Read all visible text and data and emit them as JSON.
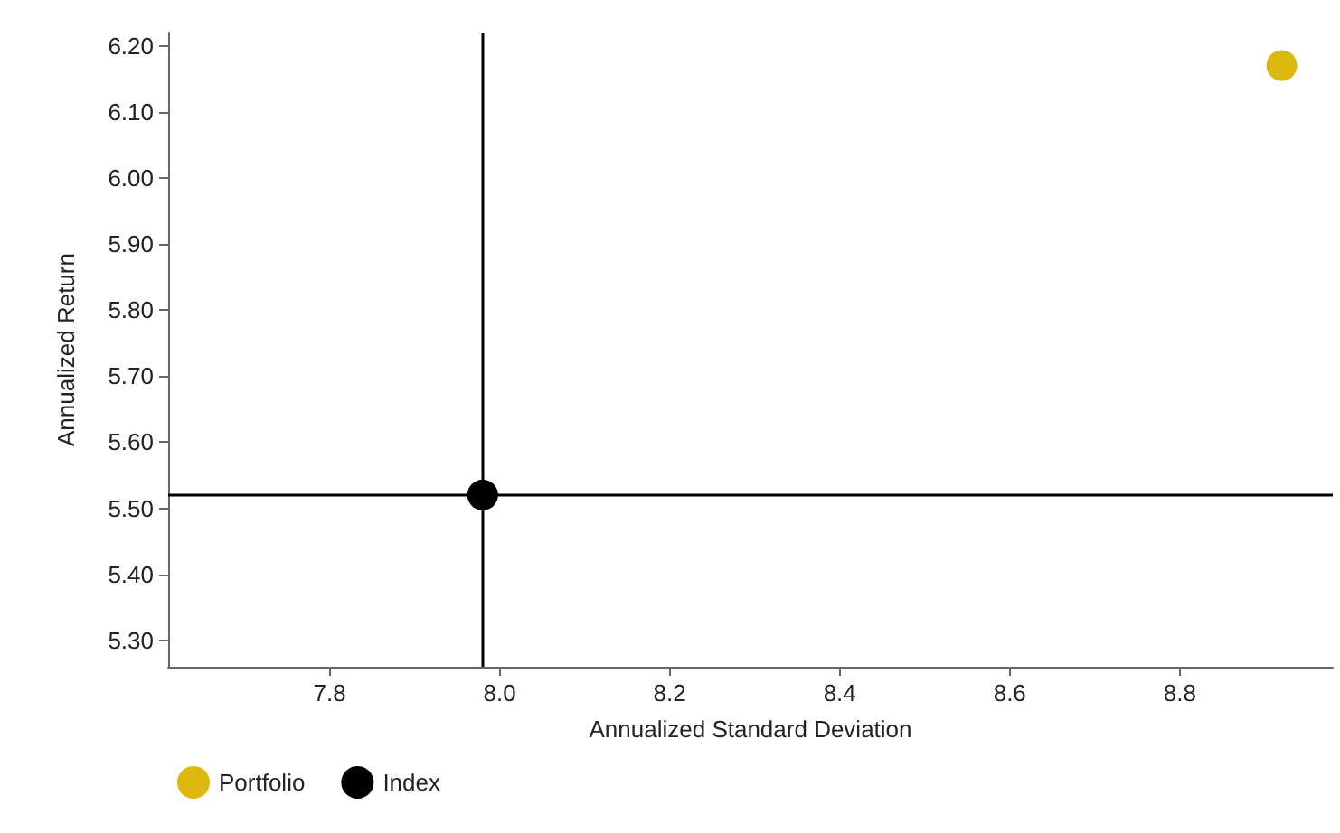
{
  "chart_data": {
    "type": "scatter",
    "xlabel": "Annualized Standard Deviation",
    "ylabel": "Annualized Return",
    "series": [
      {
        "name": "Portfolio",
        "color": "#dbb90f",
        "x": [
          8.92
        ],
        "values": [
          6.17
        ]
      },
      {
        "name": "Index",
        "color": "#000000",
        "x": [
          7.98
        ],
        "values": [
          5.52
        ]
      }
    ],
    "xlim": [
      7.61,
      8.98
    ],
    "xticks": [
      7.8,
      {
        "value": 8.0,
        "label": "8.0"
      },
      8.2,
      8.4,
      8.6,
      8.8
    ],
    "ylim": [
      5.26,
      6.22
    ],
    "yticks": [
      {
        "value": 5.3,
        "label": "5.30"
      },
      {
        "value": 5.4,
        "label": "5.40"
      },
      {
        "value": 5.5,
        "label": "5.50"
      },
      {
        "value": 5.6,
        "label": "5.60"
      },
      {
        "value": 5.7,
        "label": "5.70"
      },
      {
        "value": 5.8,
        "label": "5.80"
      },
      {
        "value": 5.9,
        "label": "5.90"
      },
      {
        "value": 6.0,
        "label": "6.00"
      },
      {
        "value": 6.1,
        "label": "6.10"
      },
      {
        "value": 6.2,
        "label": "6.20"
      }
    ],
    "ref_lines": [
      {
        "axis": "x",
        "value": 7.98,
        "color": "#000000"
      },
      {
        "axis": "y",
        "value": 5.52,
        "color": "#000000"
      }
    ],
    "grid": false,
    "legend": "bottom left",
    "marker": "circle"
  }
}
